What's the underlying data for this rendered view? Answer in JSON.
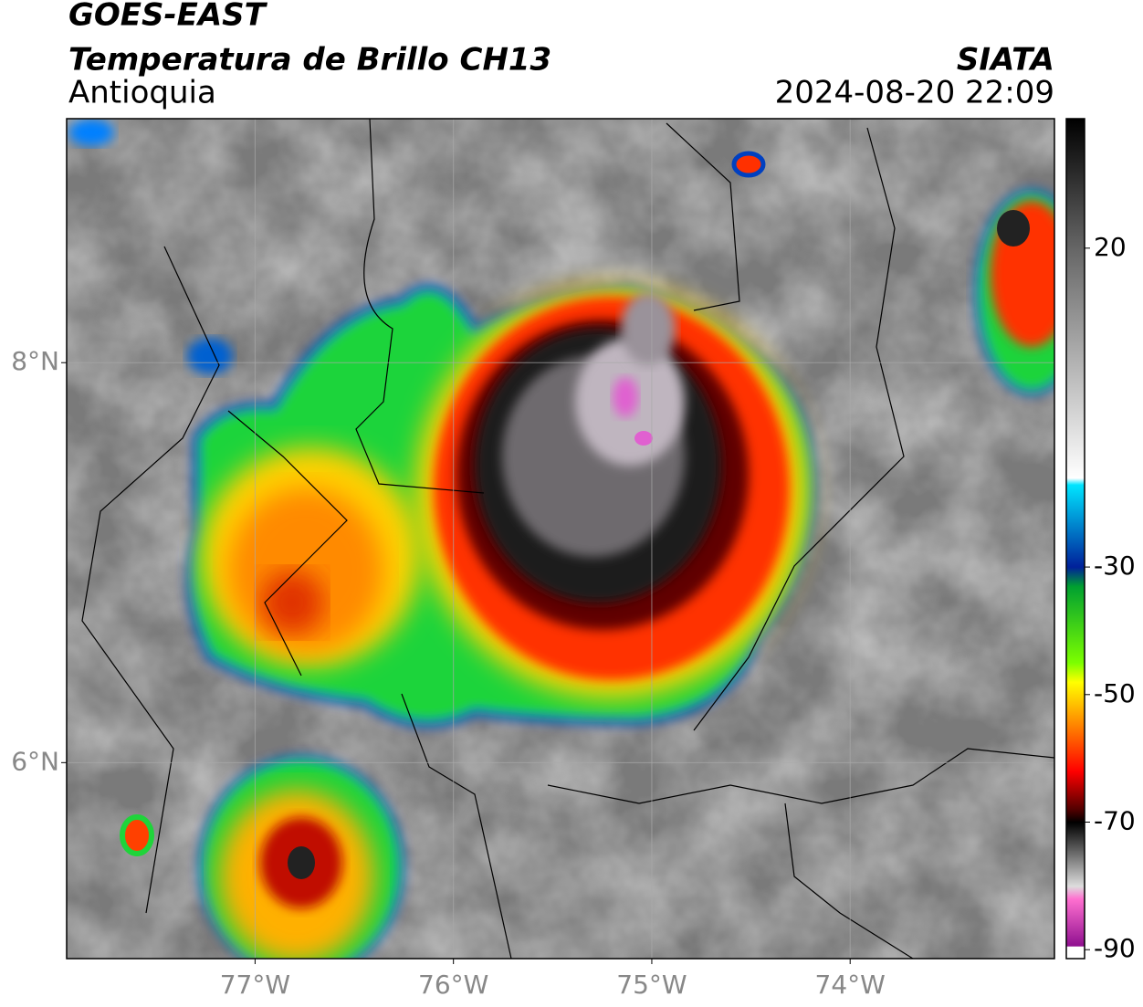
{
  "header": {
    "satellite": "GOES-EAST",
    "product": "Temperatura de Brillo CH13",
    "region": "Antioquia",
    "source": "SIATA",
    "datetime": "2024-08-20 22:09"
  },
  "map": {
    "lon_range": [
      -77.95,
      -72.97
    ],
    "lat_range": [
      5.02,
      9.22
    ],
    "lon_ticks": [
      {
        "value": -77,
        "label": "77°W"
      },
      {
        "value": -76,
        "label": "76°W"
      },
      {
        "value": -75,
        "label": "75°W"
      },
      {
        "value": -74,
        "label": "74°W"
      }
    ],
    "lat_ticks": [
      {
        "value": 8,
        "label": "8°N"
      },
      {
        "value": 6,
        "label": "6°N"
      }
    ],
    "grid": true
  },
  "colorbar": {
    "range": [
      -91.4,
      40.3
    ],
    "ticks": [
      20,
      -30,
      -50,
      -70,
      -90
    ]
  }
}
